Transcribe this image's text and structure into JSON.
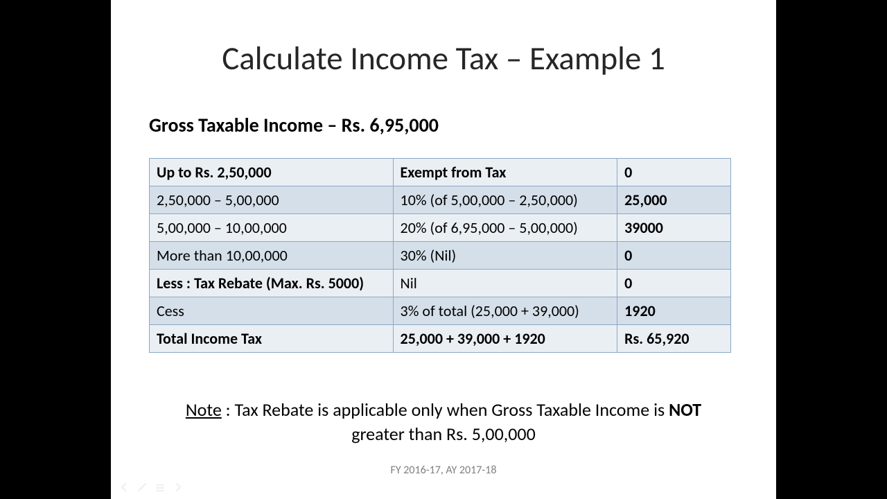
{
  "title": "Calculate Income Tax – Example 1",
  "subtitle": "Gross Taxable Income – Rs. 6,95,000",
  "table": {
    "rows": [
      {
        "c1": "Up to Rs. 2,50,000",
        "c1_bold": true,
        "c2": "Exempt from Tax",
        "c2_bold": true,
        "c3": "0",
        "c3_bold": true
      },
      {
        "c1": "2,50,000 – 5,00,000",
        "c1_bold": false,
        "c2": "10% (of 5,00,000 – 2,50,000)",
        "c2_bold": false,
        "c3": "25,000",
        "c3_bold": true
      },
      {
        "c1": "5,00,000 – 10,00,000",
        "c1_bold": false,
        "c2": "20% (of 6,95,000 – 5,00,000)",
        "c2_bold": false,
        "c3": "39000",
        "c3_bold": true
      },
      {
        "c1": "More than 10,00,000",
        "c1_bold": false,
        "c2": "30% (Nil)",
        "c2_bold": false,
        "c3": "0",
        "c3_bold": true
      },
      {
        "c1": "Less : Tax Rebate (Max. Rs. 5000)",
        "c1_bold": true,
        "c2": "Nil",
        "c2_bold": false,
        "c3": "0",
        "c3_bold": true
      },
      {
        "c1": "Cess",
        "c1_bold": false,
        "c2": "3% of total (25,000 + 39,000)",
        "c2_bold": false,
        "c3": "1920",
        "c3_bold": true
      },
      {
        "c1": "Total Income Tax",
        "c1_bold": true,
        "c2": "25,000 + 39,000 + 1920",
        "c2_bold": true,
        "c3": "Rs. 65,920",
        "c3_bold": true
      }
    ]
  },
  "note": {
    "label": "Note",
    "text_before": " : Tax Rebate is applicable only when Gross Taxable Income is ",
    "bold_word": "NOT",
    "text_after": " greater than Rs. 5,00,000"
  },
  "footer": "FY 2016-17, AY 2017-18",
  "colors": {
    "bg_page": "#000000",
    "bg_slide": "#ffffff",
    "title_color": "#262626",
    "text_color": "#000000",
    "row_odd": "#eaeff4",
    "row_even": "#d5dfe9",
    "border_color": "#8ba8c4",
    "footer_color": "#808080"
  },
  "typography": {
    "title_fontsize": 47,
    "subtitle_fontsize": 28,
    "table_fontsize": 22,
    "note_fontsize": 26,
    "footer_fontsize": 16
  }
}
